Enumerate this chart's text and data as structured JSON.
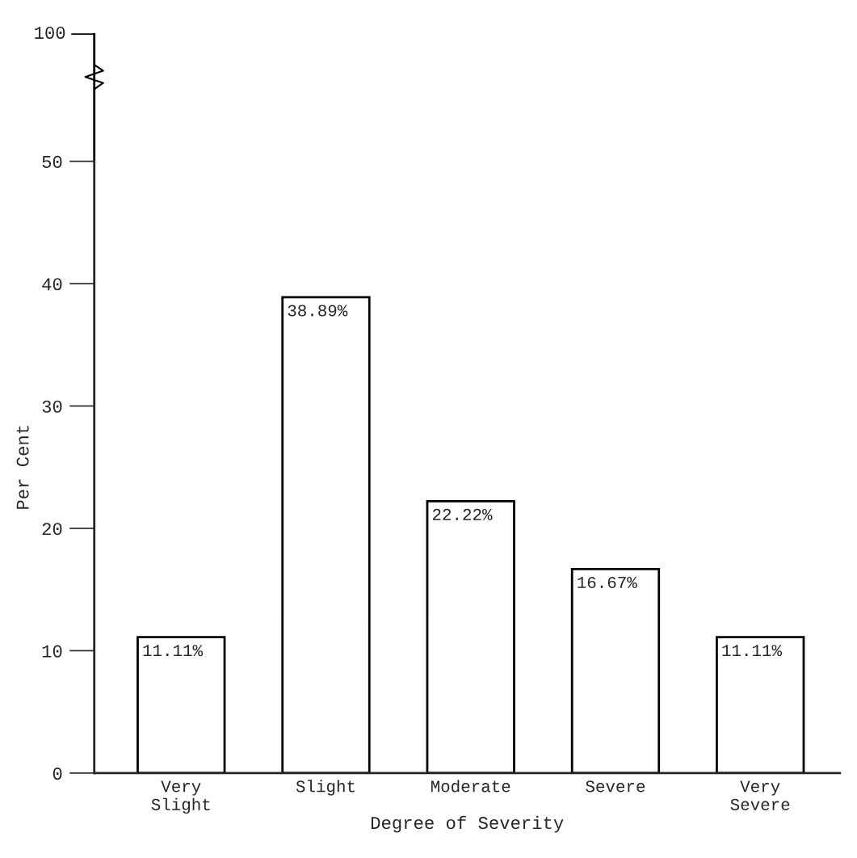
{
  "chart_data": {
    "type": "bar",
    "xlabel": "Degree of Severity",
    "ylabel": "Per Cent",
    "categories": [
      "Very\nSlight",
      "Slight",
      "Moderate",
      "Severe",
      "Very\nSevere"
    ],
    "values": [
      11.11,
      38.89,
      22.22,
      16.67,
      11.11
    ],
    "value_labels": [
      "11.11%",
      "38.89%",
      "22.22%",
      "16.67%",
      "11.11%"
    ],
    "color": "#ffffff",
    "ylim": [
      0,
      50
    ],
    "yticks": [
      0,
      10,
      20,
      30,
      40,
      50
    ],
    "annotations": [
      "100"
    ],
    "grid": false,
    "legend": false
  }
}
